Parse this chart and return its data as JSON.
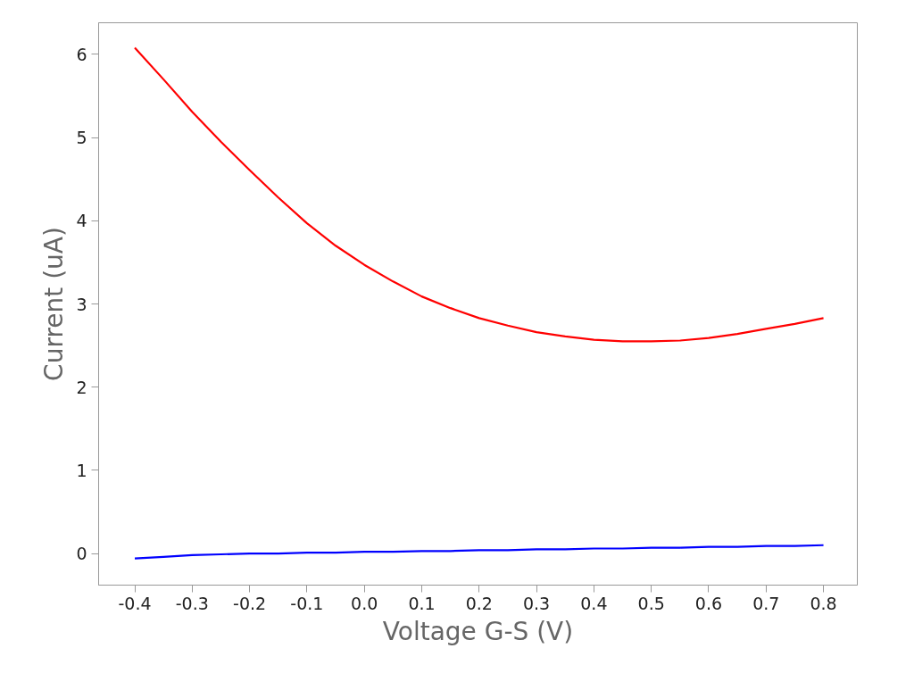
{
  "chart_data": {
    "type": "line",
    "xlabel": "Voltage G-S (V)",
    "ylabel": "Current (uA)",
    "xlim": [
      -0.463,
      0.859
    ],
    "ylim": [
      -0.38,
      6.38
    ],
    "xticks": [
      {
        "value": -0.4,
        "label": "-0.4"
      },
      {
        "value": -0.3,
        "label": "-0.3"
      },
      {
        "value": -0.2,
        "label": "-0.2"
      },
      {
        "value": -0.1,
        "label": "-0.1"
      },
      {
        "value": 0.0,
        "label": "0.0"
      },
      {
        "value": 0.1,
        "label": "0.1"
      },
      {
        "value": 0.2,
        "label": "0.2"
      },
      {
        "value": 0.3,
        "label": "0.3"
      },
      {
        "value": 0.4,
        "label": "0.4"
      },
      {
        "value": 0.5,
        "label": "0.5"
      },
      {
        "value": 0.6,
        "label": "0.6"
      },
      {
        "value": 0.7,
        "label": "0.7"
      },
      {
        "value": 0.8,
        "label": "0.8"
      }
    ],
    "yticks": [
      0,
      1,
      2,
      3,
      4,
      5,
      6
    ],
    "x": [
      -0.4,
      -0.35,
      -0.3,
      -0.25,
      -0.2,
      -0.15,
      -0.1,
      -0.05,
      0.0,
      0.05,
      0.1,
      0.15,
      0.2,
      0.25,
      0.3,
      0.35,
      0.4,
      0.45,
      0.5,
      0.55,
      0.6,
      0.65,
      0.7,
      0.75,
      0.8
    ],
    "series": [
      {
        "color": "#ff0000",
        "values": [
          6.08,
          5.7,
          5.31,
          4.95,
          4.61,
          4.28,
          3.97,
          3.7,
          3.47,
          3.27,
          3.09,
          2.95,
          2.83,
          2.74,
          2.66,
          2.61,
          2.57,
          2.55,
          2.55,
          2.56,
          2.59,
          2.64,
          2.7,
          2.76,
          2.83
        ]
      },
      {
        "color": "#0000ff",
        "values": [
          -0.06,
          -0.04,
          -0.02,
          -0.01,
          0.0,
          0.0,
          0.01,
          0.01,
          0.02,
          0.02,
          0.03,
          0.03,
          0.04,
          0.04,
          0.05,
          0.05,
          0.06,
          0.06,
          0.07,
          0.07,
          0.08,
          0.08,
          0.09,
          0.09,
          0.1
        ]
      }
    ],
    "grid": false,
    "marker": "none",
    "line_style": "solid"
  }
}
